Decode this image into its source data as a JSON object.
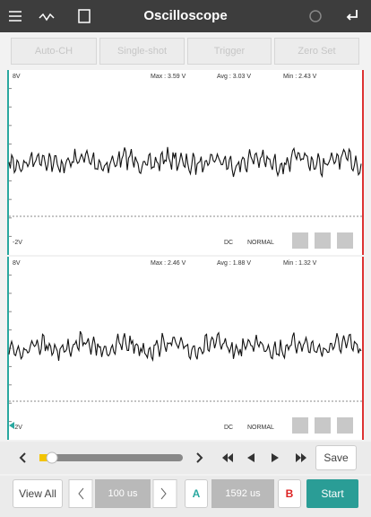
{
  "header": {
    "title": "Oscilloscope"
  },
  "toolbar": {
    "buttons": [
      "Auto-CH",
      "Single-shot",
      "Trigger",
      "Zero Set"
    ]
  },
  "channels": [
    {
      "top_label": "8V",
      "bottom_label": "-2V",
      "max": "Max : 3.59 V",
      "avg": "Avg : 3.03 V",
      "min": "Min : 2.43 V",
      "coupling": "DC",
      "mode": "NORMAL"
    },
    {
      "top_label": "8V",
      "bottom_label": "-2V",
      "max": "Max : 2.46 V",
      "avg": "Avg : 1.88 V",
      "min": "Min : 1.32 V",
      "coupling": "DC",
      "mode": "NORMAL"
    }
  ],
  "playback": {
    "save": "Save"
  },
  "footer": {
    "view_all": "View All",
    "time_base": "100 us",
    "marker_a": "A",
    "cursor_time": "1592 us",
    "marker_b": "B",
    "start": "Start"
  }
}
